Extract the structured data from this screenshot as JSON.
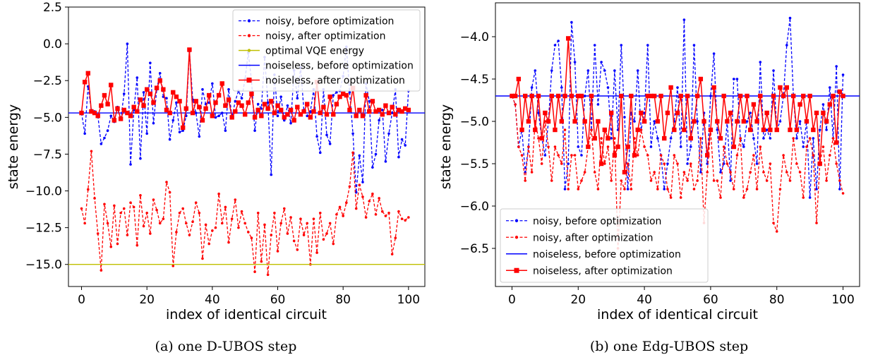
{
  "chart_data": [
    {
      "type": "line",
      "caption": "(a) one D-UBOS step",
      "xlabel": "index of identical circuit",
      "ylabel": "state energy",
      "xlim": [
        -4,
        105
      ],
      "ylim": [
        -16.5,
        2.5
      ],
      "xticks": [
        0,
        20,
        40,
        60,
        80,
        100
      ],
      "xtick_labels": [
        "0",
        "20",
        "40",
        "60",
        "80",
        "100"
      ],
      "yticks": [
        2.5,
        0.0,
        -2.5,
        -5.0,
        -7.5,
        -10.0,
        -12.5,
        -15.0
      ],
      "ytick_labels": [
        "2.5",
        "0.0",
        "−2.5",
        "−5.0",
        "−7.5",
        "−10.0",
        "−12.5",
        "−15.0"
      ],
      "legend_position": "top-right",
      "series": [
        {
          "name": "noisy, before optimization",
          "color": "#0000ff",
          "style": "dashed",
          "marker": "dot",
          "values": [
            -4.7,
            -6.1,
            -2.9,
            -4.5,
            -4.6,
            -4.9,
            -6.8,
            -6.4,
            -5.9,
            -4.9,
            -5.3,
            -4.3,
            -5.1,
            -3.4,
            0.0,
            -8.2,
            -4.5,
            -2.3,
            -7.8,
            -3.3,
            -6.1,
            -1.3,
            -5.4,
            -3.1,
            -2.0,
            -3.6,
            -3.7,
            -6.5,
            -5.2,
            -4.0,
            -6.0,
            -5.9,
            -4.9,
            -0.5,
            -3.8,
            -4.7,
            -6.3,
            -3.1,
            -4.1,
            -4.0,
            -2.7,
            -5.0,
            -4.9,
            -4.7,
            -5.9,
            -3.1,
            -5.0,
            -3.9,
            -3.2,
            -3.7,
            -2.4,
            -0.6,
            -2.5,
            -5.9,
            -4.1,
            -4.4,
            -0.9,
            -4.0,
            -8.9,
            -2.1,
            -4.9,
            -3.6,
            -5.2,
            -4.2,
            -5.4,
            -1.8,
            -3.7,
            -1.6,
            -4.5,
            -4.9,
            -4.6,
            -3.1,
            -6.3,
            -7.4,
            -3.1,
            -6.2,
            -6.8,
            -3.5,
            -3.3,
            -3.2,
            -2.2,
            -0.2,
            -3.3,
            -6.1,
            -10.1,
            -7.6,
            -9.4,
            -2.7,
            -3.9,
            -8.4,
            -7.5,
            -5.2,
            -4.5,
            -8.0,
            -6.1,
            -4.7,
            -3.1,
            -7.7,
            -6.5,
            -6.9,
            -3.2
          ]
        },
        {
          "name": "noisy, after optimization",
          "color": "#ff0000",
          "style": "dashed",
          "marker": "dot",
          "values": [
            -11.2,
            -12.2,
            -9.9,
            -7.3,
            -10.5,
            -12.9,
            -15.4,
            -10.9,
            -12.2,
            -13.8,
            -11.0,
            -13.6,
            -11.5,
            -11.2,
            -13.0,
            -10.8,
            -11.1,
            -13.7,
            -10.3,
            -12.4,
            -11.5,
            -12.9,
            -10.6,
            -11.3,
            -12.2,
            -11.9,
            -9.4,
            -10.1,
            -15.1,
            -12.8,
            -11.5,
            -11.2,
            -12.2,
            -13.0,
            -12.1,
            -10.8,
            -11.5,
            -14.6,
            -12.3,
            -13.6,
            -12.7,
            -12.5,
            -10.2,
            -12.2,
            -11.1,
            -13.5,
            -11.9,
            -10.6,
            -12.5,
            -11.4,
            -12.2,
            -12.8,
            -13.2,
            -15.5,
            -11.5,
            -14.8,
            -12.3,
            -15.7,
            -13.0,
            -11.5,
            -14.1,
            -12.2,
            -11.2,
            -12.9,
            -11.8,
            -13.4,
            -14.0,
            -11.9,
            -13.0,
            -12.2,
            -15.0,
            -11.9,
            -14.2,
            -11.5,
            -13.3,
            -12.9,
            -12.2,
            -13.6,
            -11.6,
            -11.1,
            -11.7,
            -10.8,
            -9.7,
            -7.4,
            -11.2,
            -9.6,
            -10.4,
            -11.8,
            -10.7,
            -10.2,
            -11.6,
            -10.5,
            -11.4,
            -11.7,
            -11.5,
            -14.3,
            -13.2,
            -11.4,
            -11.9,
            -12.0,
            -11.8
          ]
        },
        {
          "name": "optimal VQE energy",
          "color": "#bfbf00",
          "style": "solid",
          "marker": "dot",
          "value": -15.0
        },
        {
          "name": "noiseless, before optimization",
          "color": "#0000ff",
          "style": "solid",
          "marker": "none",
          "value": -4.7
        },
        {
          "name": "noiseless, after optimization",
          "color": "#ff0000",
          "style": "solid",
          "marker": "square",
          "values": [
            -4.7,
            -2.6,
            -2.0,
            -4.6,
            -4.7,
            -4.9,
            -4.2,
            -3.5,
            -4.1,
            -2.8,
            -5.2,
            -4.4,
            -5.1,
            -4.5,
            -4.7,
            -4.9,
            -4.3,
            -4.6,
            -3.8,
            -4.2,
            -3.1,
            -3.4,
            -4.0,
            -3.0,
            -2.5,
            -3.1,
            -4.5,
            -4.7,
            -3.3,
            -3.6,
            -3.9,
            -5.7,
            -4.4,
            -0.4,
            -4.7,
            -3.9,
            -4.3,
            -5.2,
            -4.4,
            -3.5,
            -4.9,
            -4.0,
            -3.5,
            -2.7,
            -4.2,
            -3.8,
            -5.0,
            -4.6,
            -4.0,
            -4.2,
            -4.8,
            -4.0,
            -3.4,
            -5.0,
            -4.5,
            -4.9,
            -4.1,
            -4.4,
            -3.9,
            -4.7,
            -4.2,
            -4.5,
            -5.0,
            -4.8,
            -4.5,
            -5.2,
            -4.3,
            -4.8,
            -4.6,
            -4.1,
            -5.0,
            -4.6,
            -2.6,
            -4.7,
            -4.3,
            -4.8,
            -3.6,
            -4.8,
            -4.1,
            -3.6,
            -3.4,
            -3.5,
            -4.5,
            -3.0,
            -4.9,
            -4.5,
            -4.9,
            -3.5,
            -4.6,
            -3.9,
            -4.6,
            -4.5,
            -4.8,
            -4.2,
            -4.7,
            -4.3,
            -4.8,
            -4.5,
            -4.6,
            -4.4,
            -4.5
          ]
        }
      ]
    },
    {
      "type": "line",
      "caption": "(b) one Edg-UBOS step",
      "xlabel": "index of identical circuit",
      "ylabel": "state energy",
      "xlim": [
        -5,
        105
      ],
      "ylim": [
        -6.95,
        -3.6
      ],
      "xticks": [
        0,
        20,
        40,
        60,
        80,
        100
      ],
      "xtick_labels": [
        "0",
        "20",
        "40",
        "60",
        "80",
        "100"
      ],
      "yticks": [
        -4.0,
        -4.5,
        -5.0,
        -5.5,
        -6.0,
        -6.5
      ],
      "ytick_labels": [
        "−4.0",
        "−4.5",
        "−5.0",
        "−5.5",
        "−6.0",
        "−6.5"
      ],
      "legend_position": "bottom-left",
      "series": [
        {
          "name": "noisy, before optimization",
          "color": "#0000ff",
          "style": "dashed",
          "marker": "dot",
          "values": [
            -4.7,
            -4.8,
            -5.3,
            -5.1,
            -5.6,
            -5.3,
            -4.6,
            -4.4,
            -4.9,
            -5.2,
            -5.4,
            -5.0,
            -4.4,
            -4.1,
            -4.05,
            -4.6,
            -5.8,
            -5.5,
            -3.83,
            -4.3,
            -5.3,
            -5.4,
            -4.7,
            -4.4,
            -5.1,
            -4.1,
            -4.8,
            -4.3,
            -4.4,
            -4.6,
            -5.2,
            -4.4,
            -5.1,
            -4.1,
            -4.95,
            -5.8,
            -4.9,
            -5.0,
            -4.4,
            -5.1,
            -4.9,
            -4.1,
            -5.3,
            -5.0,
            -5.2,
            -5.4,
            -5.8,
            -5.5,
            -5.2,
            -5.0,
            -4.6,
            -5.3,
            -3.8,
            -5.5,
            -5.3,
            -4.1,
            -5.0,
            -5.6,
            -4.9,
            -5.5,
            -4.7,
            -4.2,
            -5.1,
            -5.6,
            -5.5,
            -5.0,
            -5.7,
            -4.5,
            -4.5,
            -5.2,
            -5.3,
            -5.0,
            -4.9,
            -5.2,
            -5.5,
            -4.3,
            -5.2,
            -5.1,
            -5.2,
            -4.4,
            -5.1,
            -5.0,
            -4.7,
            -4.1,
            -3.78,
            -4.7,
            -5.2,
            -5.0,
            -5.3,
            -5.0,
            -5.9,
            -5.2,
            -5.8,
            -5.1,
            -4.8,
            -5.1,
            -4.6,
            -5.2,
            -4.35,
            -5.8,
            -4.45
          ]
        },
        {
          "name": "noisy, after optimization",
          "color": "#ff0000",
          "style": "dashed",
          "marker": "dot",
          "values": [
            -4.7,
            -4.8,
            -5.3,
            -5.4,
            -5.7,
            -5.3,
            -5.6,
            -5.0,
            -5.2,
            -5.5,
            -5.0,
            -5.3,
            -5.7,
            -5.3,
            -5.4,
            -5.5,
            -5.1,
            -5.8,
            -5.4,
            -5.4,
            -5.8,
            -5.7,
            -5.6,
            -5.3,
            -5.1,
            -5.6,
            -5.8,
            -5.2,
            -5.5,
            -5.3,
            -5.7,
            -5.2,
            -6.5,
            -5.7,
            -5.8,
            -5.5,
            -5.8,
            -5.2,
            -5.4,
            -5.1,
            -5.3,
            -5.4,
            -5.7,
            -5.6,
            -5.8,
            -5.4,
            -5.5,
            -5.8,
            -5.9,
            -5.4,
            -5.5,
            -5.9,
            -5.6,
            -5.7,
            -5.5,
            -5.8,
            -5.7,
            -5.2,
            -6.2,
            -5.6,
            -5.1,
            -5.7,
            -5.7,
            -5.9,
            -5.3,
            -5.5,
            -5.6,
            -5.8,
            -5.4,
            -5.2,
            -5.9,
            -5.8,
            -5.6,
            -5.4,
            -5.8,
            -5.3,
            -5.6,
            -5.7,
            -5.5,
            -6.2,
            -6.3,
            -5.8,
            -5.4,
            -5.6,
            -5.7,
            -5.2,
            -5.5,
            -5.6,
            -5.9,
            -5.3,
            -5.2,
            -5.4,
            -6.2,
            -5.5,
            -5.3,
            -5.7,
            -5.4,
            -5.2,
            -5.5,
            -5.7,
            -5.85
          ]
        },
        {
          "name": "noiseless, before optimization",
          "color": "#0000ff",
          "style": "solid",
          "marker": "none",
          "value": -4.7
        },
        {
          "name": "noiseless, after optimization",
          "color": "#ff0000",
          "style": "solid",
          "marker": "square",
          "values": [
            -4.7,
            -4.7,
            -4.5,
            -5.1,
            -4.7,
            -5.0,
            -4.7,
            -5.1,
            -4.7,
            -5.2,
            -4.9,
            -5.0,
            -4.7,
            -5.1,
            -4.7,
            -5.0,
            -4.7,
            -4.02,
            -4.7,
            -5.0,
            -4.7,
            -4.7,
            -5.0,
            -5.3,
            -4.7,
            -5.2,
            -5.0,
            -5.5,
            -5.1,
            -5.2,
            -4.9,
            -5.4,
            -5.3,
            -4.7,
            -5.6,
            -5.3,
            -4.7,
            -5.4,
            -5.1,
            -4.9,
            -5.0,
            -4.7,
            -4.7,
            -4.7,
            -5.0,
            -4.7,
            -5.2,
            -4.9,
            -4.6,
            -5.1,
            -4.9,
            -4.7,
            -5.1,
            -4.7,
            -5.2,
            -5.0,
            -4.7,
            -4.5,
            -5.0,
            -5.4,
            -5.1,
            -4.6,
            -5.0,
            -5.2,
            -4.7,
            -5.0,
            -4.9,
            -5.3,
            -5.0,
            -4.7,
            -5.0,
            -4.7,
            -5.1,
            -4.8,
            -5.0,
            -4.7,
            -5.1,
            -4.9,
            -5.1,
            -4.7,
            -5.1,
            -4.6,
            -4.7,
            -4.6,
            -5.1,
            -4.7,
            -5.1,
            -4.8,
            -4.7,
            -5.0,
            -4.7,
            -5.1,
            -4.9,
            -5.5,
            -4.9,
            -5.0,
            -4.8,
            -4.7,
            -5.25,
            -4.65,
            -4.7
          ]
        }
      ]
    }
  ]
}
